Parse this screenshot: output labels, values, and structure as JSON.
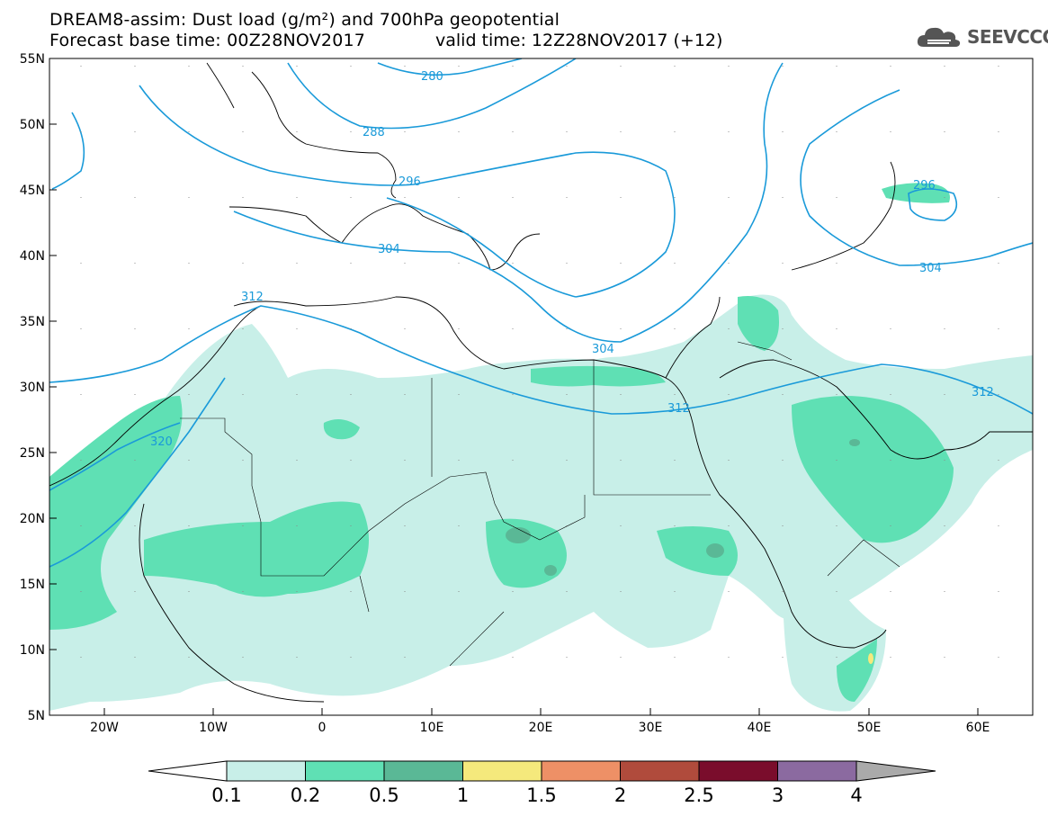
{
  "title_line1": "DREAM8-assim: Dust load (g/m²) and 700hPa geopotential",
  "title_line2_left": "Forecast base time: 00Z28NOV2017",
  "title_line2_right": "valid time: 12Z28NOV2017 (+12)",
  "logo": {
    "text": "SEEVCCC",
    "icon": "cloud-icon"
  },
  "map": {
    "lat_labels": [
      "55N",
      "50N",
      "45N",
      "40N",
      "35N",
      "30N",
      "25N",
      "20N",
      "15N",
      "10N",
      "5N"
    ],
    "lon_labels": [
      "20W",
      "10W",
      "0",
      "10E",
      "20E",
      "30E",
      "40E",
      "50E",
      "60E"
    ],
    "contour_labels": [
      "280",
      "288",
      "296",
      "304",
      "312",
      "320",
      "312",
      "304",
      "296",
      "304",
      "312"
    ],
    "contour_color": "#1a9ad9",
    "dust_colors": {
      "c01": "#c8efe8",
      "c02": "#5fe0b4",
      "c05": "#5ab896"
    }
  },
  "colorbar": {
    "labels": [
      "0.1",
      "0.2",
      "0.5",
      "1",
      "1.5",
      "2",
      "2.5",
      "3",
      "4"
    ],
    "colors": [
      "#ffffff",
      "#c8efe8",
      "#5fe0b4",
      "#5ab896",
      "#f5e97c",
      "#ee9066",
      "#b04b3c",
      "#7a0d2c",
      "#8b6aa0",
      "#aaaaaa"
    ]
  }
}
